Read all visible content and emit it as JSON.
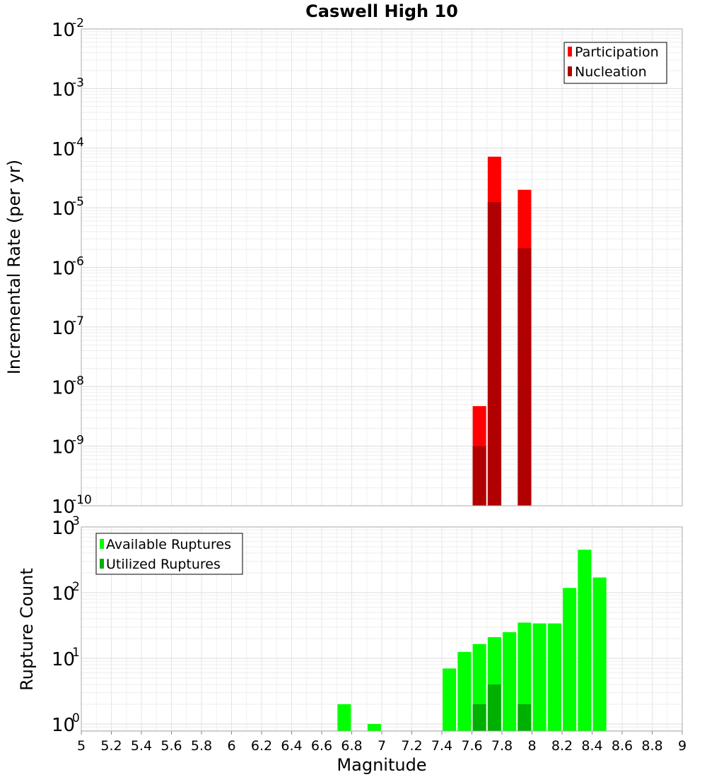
{
  "chart_data": [
    {
      "type": "bar",
      "title": "Caswell High 10",
      "ylabel": "Incremental Rate (per yr)",
      "xlabel": "",
      "xlim": [
        5,
        9
      ],
      "ylim": [
        1e-10,
        0.01
      ],
      "yscale": "log",
      "grid": true,
      "legend_position": "top-right",
      "ytick_exponents": [
        "-10",
        "-9",
        "-8",
        "-7",
        "-6",
        "-5",
        "-4",
        "-3",
        "-2"
      ],
      "ytick_base": "10",
      "series": [
        {
          "name": "Participation",
          "color": "#ff0000",
          "x": [
            7.65,
            7.75,
            7.95
          ],
          "values": [
            4.7e-09,
            7.2e-05,
            2e-05
          ]
        },
        {
          "name": "Nucleation",
          "color": "#b00000",
          "x": [
            7.65,
            7.75,
            7.95
          ],
          "values": [
            1e-09,
            1.25e-05,
            2.1e-06
          ]
        }
      ]
    },
    {
      "type": "bar",
      "title": "",
      "ylabel": "Rupture Count",
      "xlabel": "Magnitude",
      "xlim": [
        5,
        9
      ],
      "ylim": [
        0.78,
        1000
      ],
      "yscale": "log",
      "grid": true,
      "legend_position": "top-left",
      "ytick_exponents": [
        "0",
        "1",
        "2",
        "3"
      ],
      "ytick_base": "10",
      "xtick_labels": [
        "5",
        "5.2",
        "5.4",
        "5.6",
        "5.8",
        "6",
        "6.2",
        "6.4",
        "6.6",
        "6.8",
        "7",
        "7.2",
        "7.4",
        "7.6",
        "7.8",
        "8",
        "8.2",
        "8.4",
        "8.6",
        "8.8",
        "9"
      ],
      "series": [
        {
          "name": "Available Ruptures",
          "color": "#00ff00",
          "x": [
            6.75,
            6.95,
            7.45,
            7.55,
            7.65,
            7.75,
            7.85,
            7.95,
            8.05,
            8.15,
            8.25,
            8.35,
            8.45
          ],
          "values": [
            2,
            1,
            7,
            12.5,
            16.5,
            21,
            25,
            35,
            34,
            34,
            118,
            450,
            170
          ]
        },
        {
          "name": "Utilized Ruptures",
          "color": "#00b000",
          "x": [
            7.65,
            7.75,
            7.95
          ],
          "values": [
            2,
            4,
            2
          ]
        }
      ]
    }
  ]
}
